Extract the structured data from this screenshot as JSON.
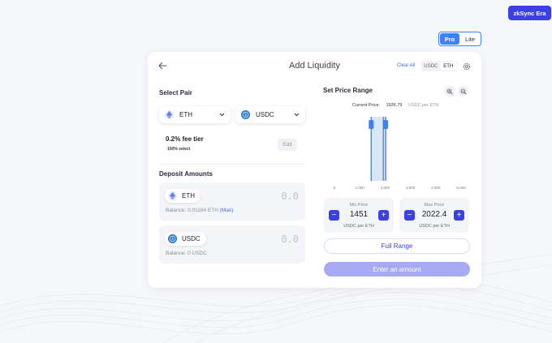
{
  "network": {
    "label": "zkSync Era"
  },
  "mode": {
    "pro": "Pro",
    "lite": "Lite",
    "active": "pro"
  },
  "header": {
    "title": "Add Liquidity",
    "clear_all": "Clear All",
    "token_a": "USDC",
    "token_b": "ETH"
  },
  "pair": {
    "title": "Select Pair",
    "token0": {
      "symbol": "ETH",
      "icon": "eth-icon"
    },
    "token1": {
      "symbol": "USDC",
      "icon": "usdc-icon"
    }
  },
  "fee": {
    "tier": "0.2% fee tier",
    "select": "100% select",
    "edit_label": "Edit"
  },
  "deposit": {
    "title": "Deposit Amounts",
    "items": [
      {
        "symbol": "ETH",
        "amount": "0.0",
        "balance_label": "Balance: 0.01184 ETH",
        "max_label": "(Max)"
      },
      {
        "symbol": "USDC",
        "amount": "0.0",
        "balance_label": "Balance: 0 USDC"
      }
    ]
  },
  "range": {
    "title": "Set Price Range",
    "current_price_label": "Current Price:",
    "current_price_value": "1926.79",
    "current_price_unit": "USDC per ETH",
    "min": {
      "title": "Min Price",
      "value": "1451",
      "unit": "USDC per ETH"
    },
    "max": {
      "title": "Max Price",
      "value": "2022.4",
      "unit": "USDC per ETH"
    },
    "full_range_label": "Full Range",
    "submit_label": "Enter an amount"
  },
  "chart_data": {
    "type": "bar",
    "x_ticks": [
      "0",
      "1,000",
      "2,000",
      "3,000",
      "4,000",
      "5,000"
    ],
    "xlim": [
      0,
      5000
    ],
    "range_min": 1451,
    "range_max": 2022.4,
    "current_price": 1926.79,
    "colors": {
      "range": "#d7e6f8",
      "handle": "#3b82f6",
      "current": "#2c3e66"
    }
  }
}
